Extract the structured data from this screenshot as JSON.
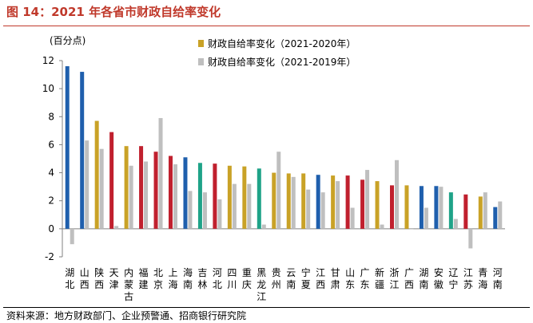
{
  "header": {
    "title": "图 14：2021 年各省市财政自给率变化"
  },
  "footer": {
    "source": "资料来源：地方财政部门、企业预警通、招商银行研究院"
  },
  "colors": {
    "bar_default_2020": "#C9A227",
    "bar_2019": "#BFBFBF",
    "bar_highlight_blue": "#1F5FAD",
    "bar_highlight_red": "#C0202E",
    "bar_highlight_teal": "#1FA388"
  },
  "chart_data": {
    "type": "bar",
    "title": "",
    "xlabel": "",
    "ylabel": "(百分点)",
    "ylim": [
      -2,
      12
    ],
    "yticks": [
      -2,
      0,
      2,
      4,
      6,
      8,
      10,
      12
    ],
    "grid": false,
    "legend_placement": "top-center",
    "categories": [
      "湖北",
      "山西",
      "陕西",
      "天津",
      "内蒙古",
      "福建",
      "北京",
      "上海",
      "海南",
      "吉林",
      "河北",
      "四川",
      "重庆",
      "黑龙江",
      "贵州",
      "云南",
      "宁夏",
      "江西",
      "甘肃",
      "山东",
      "广东",
      "新疆",
      "浙江",
      "广西",
      "湖南",
      "安徽",
      "辽宁",
      "江苏",
      "青海",
      "河南"
    ],
    "category_labels": [
      "湖\n北",
      "山\n西",
      "陕\n西",
      "天\n津",
      "内\n蒙\n古",
      "福\n建",
      "北\n京",
      "上\n海",
      "海\n南",
      "吉\n林",
      "河\n北",
      "四\n川",
      "重\n庆",
      "黑\n龙\n江",
      "贵\n州",
      "云\n南",
      "宁\n夏",
      "江\n西",
      "甘\n肃",
      "山\n东",
      "广\n东",
      "新\n疆",
      "浙\n江",
      "广\n西",
      "湖\n南",
      "安\n徽",
      "辽\n宁",
      "江\n苏",
      "青\n海",
      "河\n南"
    ],
    "series": [
      {
        "name": "财政自给率变化（2021-2020年）",
        "values": [
          11.6,
          11.2,
          7.7,
          6.9,
          5.9,
          5.9,
          5.5,
          5.2,
          5.1,
          4.7,
          4.65,
          4.5,
          4.45,
          4.3,
          4.0,
          3.95,
          3.95,
          3.85,
          3.8,
          3.8,
          3.5,
          3.4,
          3.1,
          3.1,
          3.05,
          3.05,
          2.6,
          2.45,
          2.3,
          1.55
        ],
        "bar_colors": [
          "blue",
          "blue",
          "gold",
          "red",
          "gold",
          "red",
          "red",
          "red",
          "blue",
          "teal",
          "red",
          "gold",
          "gold",
          "teal",
          "gold",
          "gold",
          "gold",
          "blue",
          "gold",
          "red",
          "red",
          "gold",
          "red",
          "gold",
          "blue",
          "blue",
          "teal",
          "red",
          "gold",
          "blue"
        ]
      },
      {
        "name": "财政自给率变化（2021-2019年）",
        "values": [
          -1.1,
          6.3,
          5.7,
          0.2,
          4.5,
          4.8,
          7.9,
          4.6,
          2.7,
          2.6,
          2.1,
          3.2,
          3.2,
          0.3,
          5.5,
          3.7,
          2.8,
          2.6,
          3.4,
          1.5,
          4.2,
          0.3,
          4.9,
          0.0,
          1.5,
          3.0,
          0.7,
          -1.4,
          2.6,
          1.95
        ]
      }
    ]
  }
}
